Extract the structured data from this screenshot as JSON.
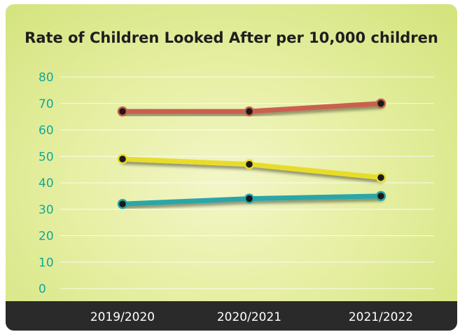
{
  "chart_data": {
    "type": "line",
    "title": "Rate of Children Looked After per 10,000 children",
    "categories": [
      "2019/2020",
      "2020/2021",
      "2021/2022"
    ],
    "yticks": [
      "0",
      "10",
      "20",
      "30",
      "40",
      "50",
      "60",
      "70",
      "80"
    ],
    "ylim": [
      0,
      80
    ],
    "grid": true,
    "legend": "none",
    "series": [
      {
        "values": [
          67,
          67,
          70
        ],
        "color": "#c9604f"
      },
      {
        "values": [
          49,
          47,
          42
        ],
        "color": "#e8dc2a"
      },
      {
        "values": [
          32,
          34,
          35
        ],
        "color": "#2aa6a8"
      }
    ]
  }
}
